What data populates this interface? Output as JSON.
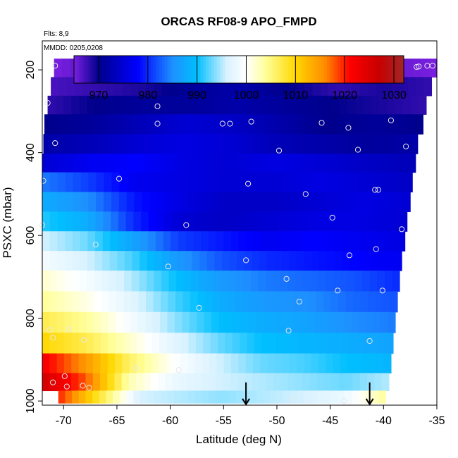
{
  "chart_data": {
    "type": "heatmap",
    "title": "ORCAS RF08-9 APO_FMPD",
    "subtitle_flights": "Flts: 8,9",
    "subtitle_dates": "MMDD: 0205,0208",
    "xlabel": "Latitude (deg N)",
    "ylabel": "PSXC (mbar)",
    "xlim": [
      -72,
      -35
    ],
    "ylim": [
      1010,
      130
    ],
    "x_ticks": [
      -70,
      -65,
      -60,
      -55,
      -50,
      -45,
      -40,
      -35
    ],
    "y_ticks": [
      200,
      400,
      600,
      800,
      1000
    ],
    "colorbar": {
      "min": 965,
      "max": 1032,
      "ticks": [
        970,
        980,
        990,
        1000,
        1010,
        1020,
        1030
      ],
      "stops": [
        {
          "v": 965,
          "c": "#7a1fe0"
        },
        {
          "v": 970,
          "c": "#00008c"
        },
        {
          "v": 978,
          "c": "#0000ff"
        },
        {
          "v": 985,
          "c": "#1e90ff"
        },
        {
          "v": 990,
          "c": "#00bfff"
        },
        {
          "v": 996,
          "c": "#d8f2ff"
        },
        {
          "v": 1000,
          "c": "#ffffff"
        },
        {
          "v": 1004,
          "c": "#ffff99"
        },
        {
          "v": 1010,
          "c": "#ffd700"
        },
        {
          "v": 1016,
          "c": "#ff8c00"
        },
        {
          "v": 1021,
          "c": "#ff0000"
        },
        {
          "v": 1027,
          "c": "#c80000"
        },
        {
          "v": 1032,
          "c": "#a02828"
        }
      ]
    },
    "bands": [
      {
        "p": 195,
        "lat_min": -70.9,
        "lat_max": -35.0,
        "values": [
          965,
          967,
          968,
          967,
          968,
          966,
          967,
          966,
          965
        ]
      },
      {
        "p": 240,
        "lat_min": -71.2,
        "lat_max": -35.5,
        "values": [
          967,
          968,
          969,
          971,
          972,
          970,
          968,
          969,
          968
        ]
      },
      {
        "p": 285,
        "lat_min": -71.5,
        "lat_max": -36.0,
        "values": [
          968,
          970,
          971,
          971,
          972,
          971,
          970,
          969,
          968
        ]
      },
      {
        "p": 330,
        "lat_min": -71.8,
        "lat_max": -36.3,
        "values": [
          970,
          971,
          973,
          975,
          974,
          972,
          970,
          971,
          970
        ]
      },
      {
        "p": 380,
        "lat_min": -71.9,
        "lat_max": -36.8,
        "values": [
          972,
          973,
          975,
          976,
          975,
          973,
          972,
          971,
          972
        ]
      },
      {
        "p": 425,
        "lat_min": -72.0,
        "lat_max": -37.0,
        "values": [
          975,
          977,
          978,
          976,
          975,
          976,
          975,
          974,
          973
        ]
      },
      {
        "p": 470,
        "lat_min": -72.0,
        "lat_max": -37.3,
        "values": [
          984,
          981,
          977,
          976,
          975,
          975,
          976,
          975,
          974
        ]
      },
      {
        "p": 520,
        "lat_min": -72.0,
        "lat_max": -37.5,
        "values": [
          988,
          985,
          979,
          976,
          974,
          974,
          975,
          976,
          975
        ]
      },
      {
        "p": 565,
        "lat_min": -72.0,
        "lat_max": -37.8,
        "values": [
          991,
          988,
          980,
          975,
          974,
          975,
          976,
          976,
          975
        ]
      },
      {
        "p": 615,
        "lat_min": -72.0,
        "lat_max": -38.0,
        "values": [
          996,
          993,
          987,
          981,
          979,
          977,
          978,
          977,
          976
        ]
      },
      {
        "p": 660,
        "lat_min": -72.0,
        "lat_max": -38.3,
        "values": [
          999,
          996,
          992,
          986,
          982,
          980,
          979,
          978,
          977
        ]
      },
      {
        "p": 710,
        "lat_min": -72.0,
        "lat_max": -38.5,
        "values": [
          1002,
          999,
          995,
          990,
          986,
          984,
          983,
          982,
          980
        ]
      },
      {
        "p": 760,
        "lat_min": -72.0,
        "lat_max": -38.7,
        "values": [
          1004,
          1001,
          997,
          992,
          988,
          986,
          985,
          983,
          982
        ]
      },
      {
        "p": 810,
        "lat_min": -72.0,
        "lat_max": -38.9,
        "values": [
          1007,
          1004,
          999,
          994,
          990,
          988,
          987,
          985,
          984
        ]
      },
      {
        "p": 860,
        "lat_min": -72.0,
        "lat_max": -39.1,
        "values": [
          1010,
          1007,
          1002,
          997,
          993,
          990,
          989,
          988,
          987
        ]
      },
      {
        "p": 910,
        "lat_min": -72.0,
        "lat_max": -39.3,
        "values": [
          1022,
          1015,
          1006,
          1000,
          996,
          993,
          992,
          990,
          989
        ]
      },
      {
        "p": 955,
        "lat_min": -72.0,
        "lat_max": -39.5,
        "values": [
          1026,
          1018,
          1003,
          998,
          996,
          995,
          994,
          993,
          995
        ]
      },
      {
        "p": 995,
        "lat_min": -70.5,
        "lat_max": -39.8,
        "values": [
          1020,
          1008,
          996,
          995,
          994,
          995,
          996,
          998,
          1004
        ]
      }
    ],
    "points": [
      {
        "x": -70.8,
        "y": 190
      },
      {
        "x": -62.8,
        "y": 190
      },
      {
        "x": -59.6,
        "y": 190
      },
      {
        "x": -56.3,
        "y": 190
      },
      {
        "x": -50.7,
        "y": 190
      },
      {
        "x": -38.9,
        "y": 203
      },
      {
        "x": -36.9,
        "y": 193
      },
      {
        "x": -36.7,
        "y": 192
      },
      {
        "x": -35.9,
        "y": 190
      },
      {
        "x": -35.4,
        "y": 190
      },
      {
        "x": -71.5,
        "y": 280
      },
      {
        "x": -61.2,
        "y": 288
      },
      {
        "x": -61.2,
        "y": 330
      },
      {
        "x": -55.1,
        "y": 330
      },
      {
        "x": -54.4,
        "y": 330
      },
      {
        "x": -52.4,
        "y": 325
      },
      {
        "x": -45.8,
        "y": 328
      },
      {
        "x": -43.3,
        "y": 340
      },
      {
        "x": -39.3,
        "y": 322
      },
      {
        "x": -70.8,
        "y": 377
      },
      {
        "x": -49.8,
        "y": 395
      },
      {
        "x": -42.4,
        "y": 393
      },
      {
        "x": -37.9,
        "y": 385
      },
      {
        "x": -71.9,
        "y": 468
      },
      {
        "x": -64.8,
        "y": 463
      },
      {
        "x": -52.7,
        "y": 475
      },
      {
        "x": -47.3,
        "y": 500
      },
      {
        "x": -40.8,
        "y": 490
      },
      {
        "x": -40.5,
        "y": 490
      },
      {
        "x": -72.0,
        "y": 575
      },
      {
        "x": -58.5,
        "y": 575
      },
      {
        "x": -44.8,
        "y": 557
      },
      {
        "x": -38.3,
        "y": 585
      },
      {
        "x": -67.0,
        "y": 622
      },
      {
        "x": -60.2,
        "y": 675
      },
      {
        "x": -52.9,
        "y": 660
      },
      {
        "x": -43.2,
        "y": 648
      },
      {
        "x": -40.7,
        "y": 633
      },
      {
        "x": -49.1,
        "y": 705
      },
      {
        "x": -44.3,
        "y": 733
      },
      {
        "x": -40.1,
        "y": 733
      },
      {
        "x": -47.9,
        "y": 760
      },
      {
        "x": -57.3,
        "y": 775
      },
      {
        "x": -71.3,
        "y": 828
      },
      {
        "x": -69.5,
        "y": 827
      },
      {
        "x": -71.0,
        "y": 847
      },
      {
        "x": -68.1,
        "y": 852
      },
      {
        "x": -48.9,
        "y": 830
      },
      {
        "x": -41.3,
        "y": 855
      },
      {
        "x": -63.2,
        "y": 920
      },
      {
        "x": -59.2,
        "y": 925
      },
      {
        "x": -71.0,
        "y": 955
      },
      {
        "x": -69.9,
        "y": 940
      },
      {
        "x": -69.7,
        "y": 965
      },
      {
        "x": -68.2,
        "y": 963
      },
      {
        "x": -67.6,
        "y": 968
      },
      {
        "x": -48.5,
        "y": 995
      },
      {
        "x": -43.7,
        "y": 1000
      }
    ],
    "arrows": [
      {
        "x": -52.9,
        "y_from": 955,
        "y_to": 1008
      },
      {
        "x": -41.3,
        "y_from": 955,
        "y_to": 1008
      }
    ]
  }
}
